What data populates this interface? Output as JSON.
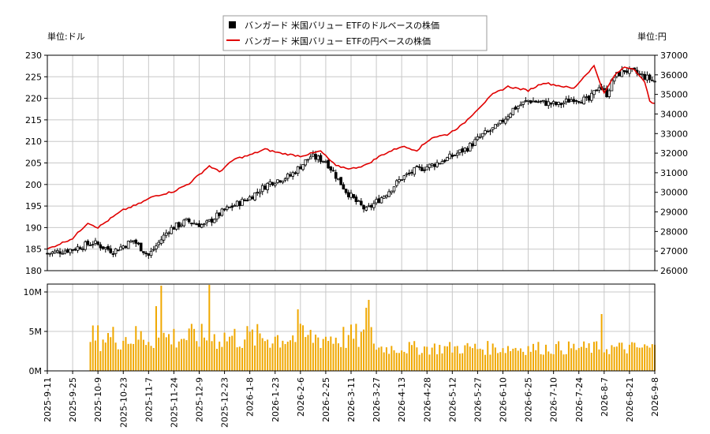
{
  "legend": {
    "dollar_label": "バンガード 米国バリュー ETFのドルベースの株価",
    "yen_label": "バンガード 米国バリュー ETFの円ベースの株価"
  },
  "unit_left": "単位:ドル",
  "unit_right": "単位:円",
  "colors": {
    "candle": "#000000",
    "yen_line": "#e00000",
    "volume": "#f0a800",
    "grid": "#c8c8c8"
  },
  "chart_data": {
    "type": "candlestick+line+bar",
    "x_ticks": [
      "2025-9-11",
      "2025-9-25",
      "2025-10-9",
      "2025-10-23",
      "2025-11-7",
      "2025-11-24",
      "2025-12-9",
      "2025-12-23",
      "2026-1-8",
      "2026-1-23",
      "2026-2-6",
      "2026-2-25",
      "2026-3-11",
      "2026-3-27",
      "2026-4-13",
      "2026-4-28",
      "2026-5-12",
      "2026-5-27",
      "2026-6-10",
      "2026-6-25",
      "2026-7-10",
      "2026-7-24",
      "2026-8-7",
      "2026-8-21",
      "2026-9-8"
    ],
    "price_axis_left": {
      "min": 180,
      "max": 230,
      "ticks": [
        "180",
        "185",
        "190",
        "195",
        "200",
        "205",
        "210",
        "215",
        "220",
        "225",
        "230"
      ]
    },
    "price_axis_right": {
      "min": 26000,
      "max": 37000,
      "ticks": [
        "26000",
        "27000",
        "28000",
        "29000",
        "30000",
        "31000",
        "32000",
        "33000",
        "34000",
        "35000",
        "36000",
        "37000"
      ]
    },
    "volume_axis": {
      "min": 0,
      "max": 11000000,
      "ticks": [
        "0M",
        "5M",
        "10M"
      ]
    },
    "dollar_close_anchors": [
      [
        0,
        184
      ],
      [
        10,
        185
      ],
      [
        18,
        186.5
      ],
      [
        26,
        184.5
      ],
      [
        34,
        187
      ],
      [
        40,
        183.5
      ],
      [
        48,
        189.5
      ],
      [
        55,
        191.5
      ],
      [
        62,
        190.5
      ],
      [
        70,
        194
      ],
      [
        80,
        197
      ],
      [
        88,
        200.5
      ],
      [
        96,
        202
      ],
      [
        104,
        206.5
      ],
      [
        110,
        205.5
      ],
      [
        114,
        202
      ],
      [
        118,
        198.5
      ],
      [
        122,
        196
      ],
      [
        126,
        194
      ],
      [
        130,
        196
      ],
      [
        134,
        198
      ],
      [
        140,
        201.5
      ],
      [
        146,
        203.5
      ],
      [
        152,
        204.5
      ],
      [
        158,
        206
      ],
      [
        166,
        208.5
      ],
      [
        172,
        211.5
      ],
      [
        178,
        213.5
      ],
      [
        184,
        217.5
      ],
      [
        190,
        219.5
      ],
      [
        196,
        219
      ],
      [
        202,
        218.5
      ],
      [
        208,
        220
      ],
      [
        214,
        219.5
      ],
      [
        218,
        223
      ],
      [
        221,
        221
      ],
      [
        224,
        225
      ],
      [
        228,
        226.5
      ],
      [
        232,
        226
      ],
      [
        236,
        225
      ],
      [
        240,
        224
      ]
    ],
    "yen_close_anchors": [
      [
        0,
        27100
      ],
      [
        10,
        27650
      ],
      [
        16,
        28450
      ],
      [
        20,
        28200
      ],
      [
        26,
        28750
      ],
      [
        30,
        29100
      ],
      [
        36,
        29400
      ],
      [
        42,
        29800
      ],
      [
        50,
        30050
      ],
      [
        56,
        30450
      ],
      [
        64,
        31350
      ],
      [
        68,
        31050
      ],
      [
        74,
        31700
      ],
      [
        80,
        31900
      ],
      [
        86,
        32200
      ],
      [
        92,
        32000
      ],
      [
        100,
        31850
      ],
      [
        108,
        32100
      ],
      [
        114,
        31350
      ],
      [
        120,
        31200
      ],
      [
        126,
        31400
      ],
      [
        132,
        31900
      ],
      [
        140,
        32350
      ],
      [
        146,
        32150
      ],
      [
        152,
        32800
      ],
      [
        158,
        32950
      ],
      [
        164,
        33450
      ],
      [
        170,
        34250
      ],
      [
        176,
        35000
      ],
      [
        182,
        35400
      ],
      [
        190,
        35200
      ],
      [
        196,
        35600
      ],
      [
        202,
        35450
      ],
      [
        208,
        35300
      ],
      [
        212,
        35900
      ],
      [
        216,
        36450
      ],
      [
        220,
        35050
      ],
      [
        224,
        35950
      ],
      [
        228,
        36400
      ],
      [
        232,
        36300
      ],
      [
        236,
        35600
      ],
      [
        238,
        34700
      ],
      [
        240,
        34500
      ]
    ],
    "volume_start_bar": 17,
    "volume_base": 2500000
  }
}
